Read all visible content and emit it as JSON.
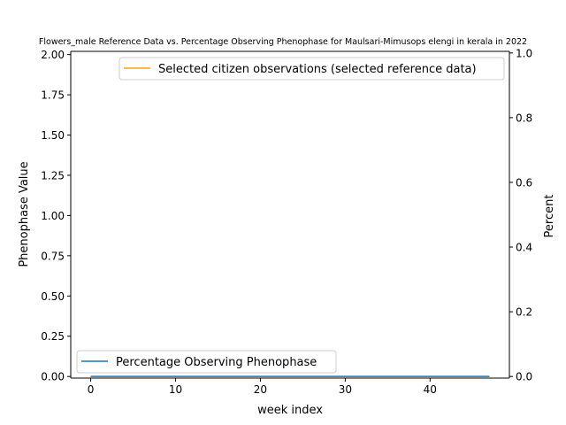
{
  "chart_data": {
    "type": "line",
    "title": "Flowers_male Reference Data vs. Percentage Observing Phenophase for Maulsari-Mimusops elengi in kerala in 2022",
    "xlabel": "week index",
    "ylabel_left": "Phenophase Value",
    "ylabel_right": "Percent",
    "xlim": [
      -2.35,
      49.35
    ],
    "ylim_left": [
      -0.01,
      2.02
    ],
    "ylim_right": [
      -0.005,
      1.005
    ],
    "x_ticks": [
      0,
      10,
      20,
      30,
      40
    ],
    "y_left_ticks": [
      0.0,
      0.25,
      0.5,
      0.75,
      1.0,
      1.25,
      1.5,
      1.75,
      2.0
    ],
    "y_left_tick_labels": [
      "0.00",
      "0.25",
      "0.50",
      "0.75",
      "1.00",
      "1.25",
      "1.50",
      "1.75",
      "2.00"
    ],
    "y_right_ticks": [
      0.0,
      0.2,
      0.4,
      0.6,
      0.8,
      1.0
    ],
    "y_right_tick_labels": [
      "0.0",
      "0.2",
      "0.4",
      "0.6",
      "0.8",
      "1.0"
    ],
    "grid": false,
    "series": [
      {
        "name": "Percentage Observing Phenophase",
        "axis": "left",
        "color": "#1f77b4",
        "x": [
          0,
          47
        ],
        "y": [
          0.0,
          0.0
        ]
      },
      {
        "name": "Selected citizen observations (selected reference data)",
        "axis": "right",
        "color": "#ffa500",
        "x": [],
        "y": []
      }
    ],
    "legends": [
      {
        "placement": "upper-right",
        "series": [
          "Selected citizen observations (selected reference data)"
        ]
      },
      {
        "placement": "lower-left",
        "series": [
          "Percentage Observing Phenophase"
        ]
      }
    ]
  }
}
